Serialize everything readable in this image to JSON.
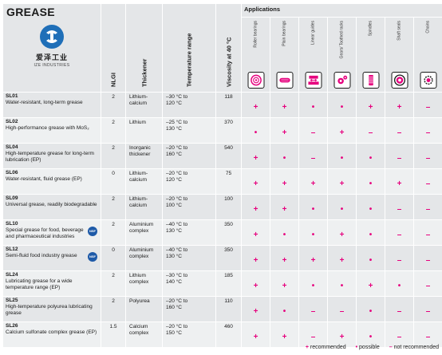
{
  "header": {
    "title": "GREASE",
    "logo_cn": "爱泽工业",
    "logo_en": "IZE INDUSTRIES",
    "nlgi": "NLGI",
    "thickener": "Thickener",
    "temperature": "Temperature range",
    "viscosity": "Viscosity at 40 °C",
    "applications": "Applications"
  },
  "applications": [
    {
      "label": "Roller bearings",
      "icon": "roller-bearing-icon"
    },
    {
      "label": "Plain bearings",
      "icon": "plain-bearing-icon"
    },
    {
      "label": "Linear guides",
      "icon": "linear-guide-icon"
    },
    {
      "label": "Gears/ Toothed racks",
      "icon": "gear-icon"
    },
    {
      "label": "Spindles",
      "icon": "spindle-icon"
    },
    {
      "label": "Shaft seals",
      "icon": "shaft-seal-icon"
    },
    {
      "label": "Chains",
      "icon": "chain-icon"
    }
  ],
  "rows": [
    {
      "name": "SL01",
      "desc": "Water-resistant, long-term grease",
      "nlgi": "2",
      "thick": [
        "Lithium-",
        "calcium"
      ],
      "temp": [
        "–30 °C to",
        "120 °C"
      ],
      "visc": "118",
      "ratings": [
        "+",
        "+",
        "•",
        "•",
        "+",
        "+",
        "–"
      ]
    },
    {
      "name": "SL02",
      "desc": "High-performance grease with MoS₂",
      "nlgi": "2",
      "thick": [
        "Lithium"
      ],
      "temp": [
        "–25 °C to",
        "130 °C"
      ],
      "visc": "370",
      "ratings": [
        "•",
        "+",
        "–",
        "+",
        "–",
        "–",
        "–"
      ]
    },
    {
      "name": "SL04",
      "desc": "High-temperature grease for long-term lubrication (EP)",
      "nlgi": "2",
      "thick": [
        "Inorganic",
        "thickener"
      ],
      "temp": [
        "–20 °C to",
        "160 °C"
      ],
      "visc": "540",
      "ratings": [
        "+",
        "•",
        "–",
        "•",
        "•",
        "–",
        "–"
      ]
    },
    {
      "name": "SL06",
      "desc": "Water-resistant, fluid grease (EP)",
      "nlgi": "0",
      "thick": [
        "Lithium-",
        "calcium"
      ],
      "temp": [
        "–20 °C to",
        "120 °C"
      ],
      "visc": "75",
      "ratings": [
        "+",
        "+",
        "+",
        "+",
        "•",
        "+",
        "–"
      ]
    },
    {
      "name": "SL09",
      "desc": "Universal grease, readily biodegradable",
      "nlgi": "2",
      "thick": [
        "Lithium-",
        "calcium"
      ],
      "temp": [
        "–20 °C to",
        "100 °C"
      ],
      "visc": "100",
      "ratings": [
        "+",
        "+",
        "•",
        "•",
        "•",
        "–",
        "–"
      ]
    },
    {
      "name": "SL10",
      "desc": "Special grease for food, beverage and pharmaceutical industries",
      "nlgi": "2",
      "thick": [
        "Aluminium",
        "complex"
      ],
      "temp": [
        "–40 °C to",
        "130 °C"
      ],
      "visc": "350",
      "nsf": "NSF",
      "ratings": [
        "+",
        "•",
        "•",
        "+",
        "•",
        "–",
        "–"
      ]
    },
    {
      "name": "SL12",
      "desc": "Semi-fluid food industry grease",
      "nlgi": "0",
      "thick": [
        "Aluminium",
        "complex"
      ],
      "temp": [
        "–40 °C to",
        "130 °C"
      ],
      "visc": "350",
      "nsf": "NSF",
      "ratings": [
        "+",
        "+",
        "+",
        "+",
        "•",
        "–",
        "–"
      ]
    },
    {
      "name": "SL24",
      "desc": "Lubricating grease for a wide temperature range (EP)",
      "nlgi": "2",
      "thick": [
        "Lithium",
        "complex"
      ],
      "temp": [
        "–30 °C to",
        "140 °C"
      ],
      "visc": "185",
      "ratings": [
        "+",
        "+",
        "•",
        "•",
        "+",
        "•",
        "–"
      ]
    },
    {
      "name": "SL25",
      "desc": "High-temperature polyurea lubricating grease",
      "nlgi": "2",
      "thick": [
        "Polyurea"
      ],
      "temp": [
        "–20 °C to",
        "160 °C"
      ],
      "visc": "110",
      "ratings": [
        "+",
        "•",
        "–",
        "–",
        "•",
        "–",
        "–"
      ]
    },
    {
      "name": "SL26",
      "desc": "Calcium sulfonate complex grease (EP)",
      "nlgi": "1.5",
      "thick": [
        "Calcium",
        "complex"
      ],
      "temp": [
        "–20 °C to",
        "150 °C"
      ],
      "visc": "460",
      "ratings": [
        "+",
        "+",
        "–",
        "+",
        "•",
        "–",
        "–"
      ]
    }
  ],
  "legend": {
    "recommended_sym": "+",
    "recommended": "recommended",
    "possible_sym": "•",
    "possible": "possible",
    "not_sym": "–",
    "not": "not recommended"
  },
  "colors": {
    "accent": "#e6007e",
    "header_bg": "#e4e6e8",
    "row_alt": "#eef0f1",
    "logo": "#1f6fb8"
  }
}
